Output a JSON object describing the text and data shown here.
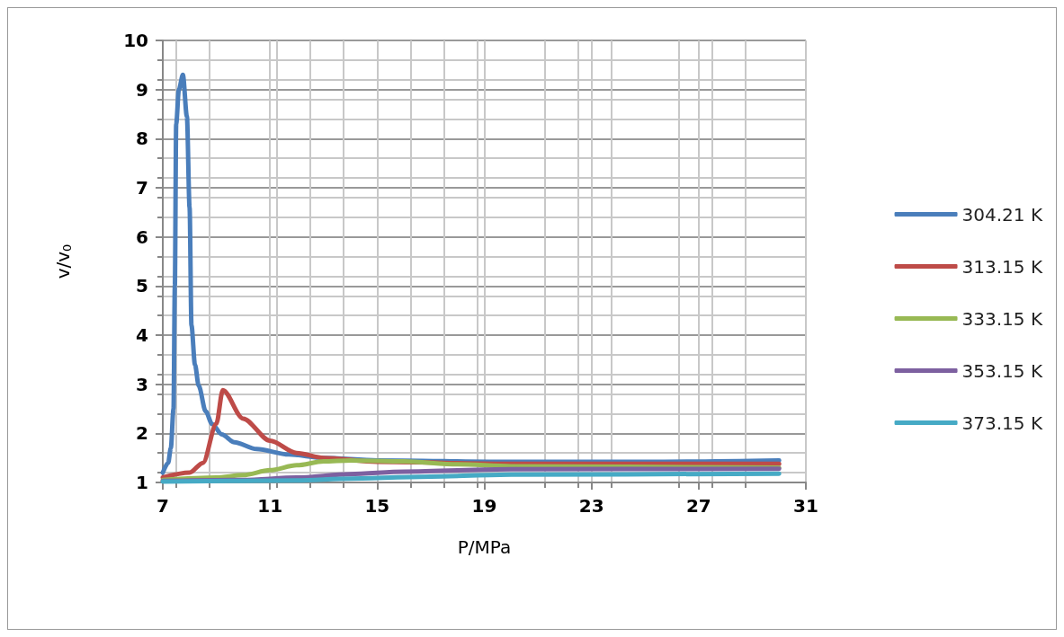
{
  "chart_data": {
    "type": "line",
    "xlabel": "P/MPa",
    "ylabel": "v/v$_{0}$",
    "xlim": [
      7,
      31
    ],
    "xticks": [
      7,
      11,
      15,
      19,
      23,
      27,
      31
    ],
    "ylim": [
      1,
      10
    ],
    "yticks": [
      1,
      2,
      3,
      4,
      5,
      6,
      7,
      8,
      9,
      10
    ],
    "grid": true,
    "legend": "right",
    "marker": "none",
    "line_style": "solid",
    "series": [
      {
        "name": "304.21 K",
        "color": "#4a7ebb",
        "x": [
          7,
          7.2,
          7.3,
          7.4,
          7.45,
          7.5,
          7.6,
          7.75,
          7.9,
          8.0,
          8.07,
          8.2,
          8.34,
          8.6,
          8.84,
          9.2,
          9.67,
          10.5,
          11.7,
          13,
          15,
          20,
          25,
          30
        ],
        "values": [
          1.2,
          1.4,
          1.7,
          2.5,
          5,
          8.3,
          9.0,
          9.3,
          8.45,
          6.6,
          4.2,
          3.4,
          2.97,
          2.45,
          2.19,
          1.98,
          1.82,
          1.68,
          1.57,
          1.5,
          1.45,
          1.42,
          1.42,
          1.45
        ]
      },
      {
        "name": "313.15 K",
        "color": "#be4b48",
        "x": [
          7,
          8,
          8.5,
          9,
          9.24,
          10,
          11,
          12,
          13,
          15,
          20,
          30
        ],
        "values": [
          1.1,
          1.2,
          1.4,
          2.2,
          2.88,
          2.3,
          1.85,
          1.6,
          1.5,
          1.42,
          1.38,
          1.38
        ]
      },
      {
        "name": "333.15 K",
        "color": "#98b954",
        "x": [
          7,
          9,
          10,
          11,
          12,
          13,
          14,
          16,
          18,
          20,
          30
        ],
        "values": [
          1.05,
          1.1,
          1.15,
          1.25,
          1.35,
          1.43,
          1.45,
          1.43,
          1.37,
          1.33,
          1.3
        ]
      },
      {
        "name": "353.15 K",
        "color": "#7d60a0",
        "x": [
          7,
          10,
          12,
          14,
          16,
          20,
          30
        ],
        "values": [
          1.03,
          1.05,
          1.1,
          1.17,
          1.22,
          1.27,
          1.28
        ]
      },
      {
        "name": "373.15 K",
        "color": "#46aac5",
        "x": [
          7,
          12,
          14,
          17,
          20,
          30
        ],
        "values": [
          1.02,
          1.04,
          1.08,
          1.12,
          1.16,
          1.18
        ]
      }
    ]
  }
}
